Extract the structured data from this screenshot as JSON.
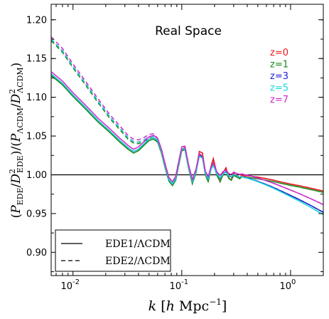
{
  "chart_data": {
    "type": "line",
    "title": "Real Space",
    "xlabel": "k [h Mpc^-1]",
    "ylabel": "(P_EDE/D^2_EDE)/(P_ΛCDM/D^2_ΛCDM)",
    "xscale": "log",
    "xlim": [
      0.0063,
      2.0
    ],
    "ylim": [
      0.87,
      1.22
    ],
    "xticks": [
      {
        "value": 0.01,
        "base": "10",
        "exp": "-2"
      },
      {
        "value": 0.1,
        "base": "10",
        "exp": "-1"
      },
      {
        "value": 1.0,
        "base": "10",
        "exp": "0"
      }
    ],
    "yticks": [
      "0.90",
      "0.95",
      "1.00",
      "1.05",
      "1.10",
      "1.15",
      "1.20"
    ],
    "reference_line": 1.0,
    "redshift_legend": [
      {
        "label": "z=0",
        "color": "#e8191e"
      },
      {
        "label": "z=1",
        "color": "#1a8a1a"
      },
      {
        "label": "z=3",
        "color": "#1f1fd6"
      },
      {
        "label": "z=5",
        "color": "#19d6d6"
      },
      {
        "label": "z=7",
        "color": "#cc2acc"
      }
    ],
    "style_legend": [
      {
        "label": "EDE1/ΛCDM",
        "style": "solid"
      },
      {
        "label": "EDE2/ΛCDM",
        "style": "dashed"
      }
    ],
    "x": [
      0.0063,
      0.008,
      0.01,
      0.013,
      0.017,
      0.022,
      0.027,
      0.032,
      0.036,
      0.04,
      0.045,
      0.05,
      0.055,
      0.06,
      0.065,
      0.07,
      0.076,
      0.082,
      0.088,
      0.093,
      0.1,
      0.107,
      0.115,
      0.125,
      0.135,
      0.145,
      0.155,
      0.165,
      0.175,
      0.185,
      0.195,
      0.21,
      0.225,
      0.24,
      0.255,
      0.27,
      0.285,
      0.3,
      0.32,
      0.34,
      0.36,
      0.38,
      0.4,
      0.45,
      0.5,
      0.6,
      0.7,
      0.8,
      1.0,
      1.2,
      1.5,
      2.0
    ],
    "base_solid": [
      1.13,
      1.118,
      1.103,
      1.087,
      1.07,
      1.056,
      1.044,
      1.035,
      1.03,
      1.033,
      1.04,
      1.046,
      1.048,
      1.044,
      1.03,
      1.012,
      0.994,
      0.988,
      0.995,
      1.012,
      1.033,
      1.035,
      1.012,
      0.99,
      1.005,
      1.03,
      1.028,
      1.002,
      0.992,
      1.01,
      1.021,
      1.002,
      0.991,
      1.003,
      1.009,
      0.996,
      0.993,
      1.002,
      0.999,
      0.996,
      1.0,
      0.998,
      0.999,
      0.998,
      0.997,
      0.995,
      0.993,
      0.991,
      0.988,
      0.986,
      0.983,
      0.979
    ],
    "base_dashed": [
      1.175,
      1.16,
      1.14,
      1.118,
      1.095,
      1.074,
      1.06,
      1.048,
      1.043,
      1.042,
      1.045,
      1.049,
      1.05,
      1.044,
      1.03,
      1.012,
      0.994,
      0.988,
      0.995,
      1.012,
      1.033,
      1.035,
      1.012,
      0.99,
      1.005,
      1.03,
      1.028,
      1.002,
      0.992,
      1.01,
      1.021,
      1.002,
      0.991,
      1.003,
      1.009,
      0.996,
      0.993,
      1.002,
      0.999,
      0.996,
      1.0,
      0.998,
      0.999,
      0.998,
      0.997,
      0.995,
      0.993,
      0.991,
      0.988,
      0.986,
      0.983,
      0.979
    ],
    "series": [
      {
        "z": 0,
        "color": "#e8191e",
        "offset": 0.0,
        "damp": 0.0,
        "drop": 0.0
      },
      {
        "z": 1,
        "color": "#1a8a1a",
        "offset": -0.002,
        "damp": 0.3,
        "drop": 0.006
      },
      {
        "z": 3,
        "color": "#1f1fd6",
        "offset": 0.0,
        "damp": 0.6,
        "drop": 0.04
      },
      {
        "z": 5,
        "color": "#19d6d6",
        "offset": 0.0,
        "damp": 0.65,
        "drop": 0.044
      },
      {
        "z": 7,
        "color": "#cc2acc",
        "offset": 0.003,
        "damp": 0.65,
        "drop": 0.034
      }
    ]
  }
}
